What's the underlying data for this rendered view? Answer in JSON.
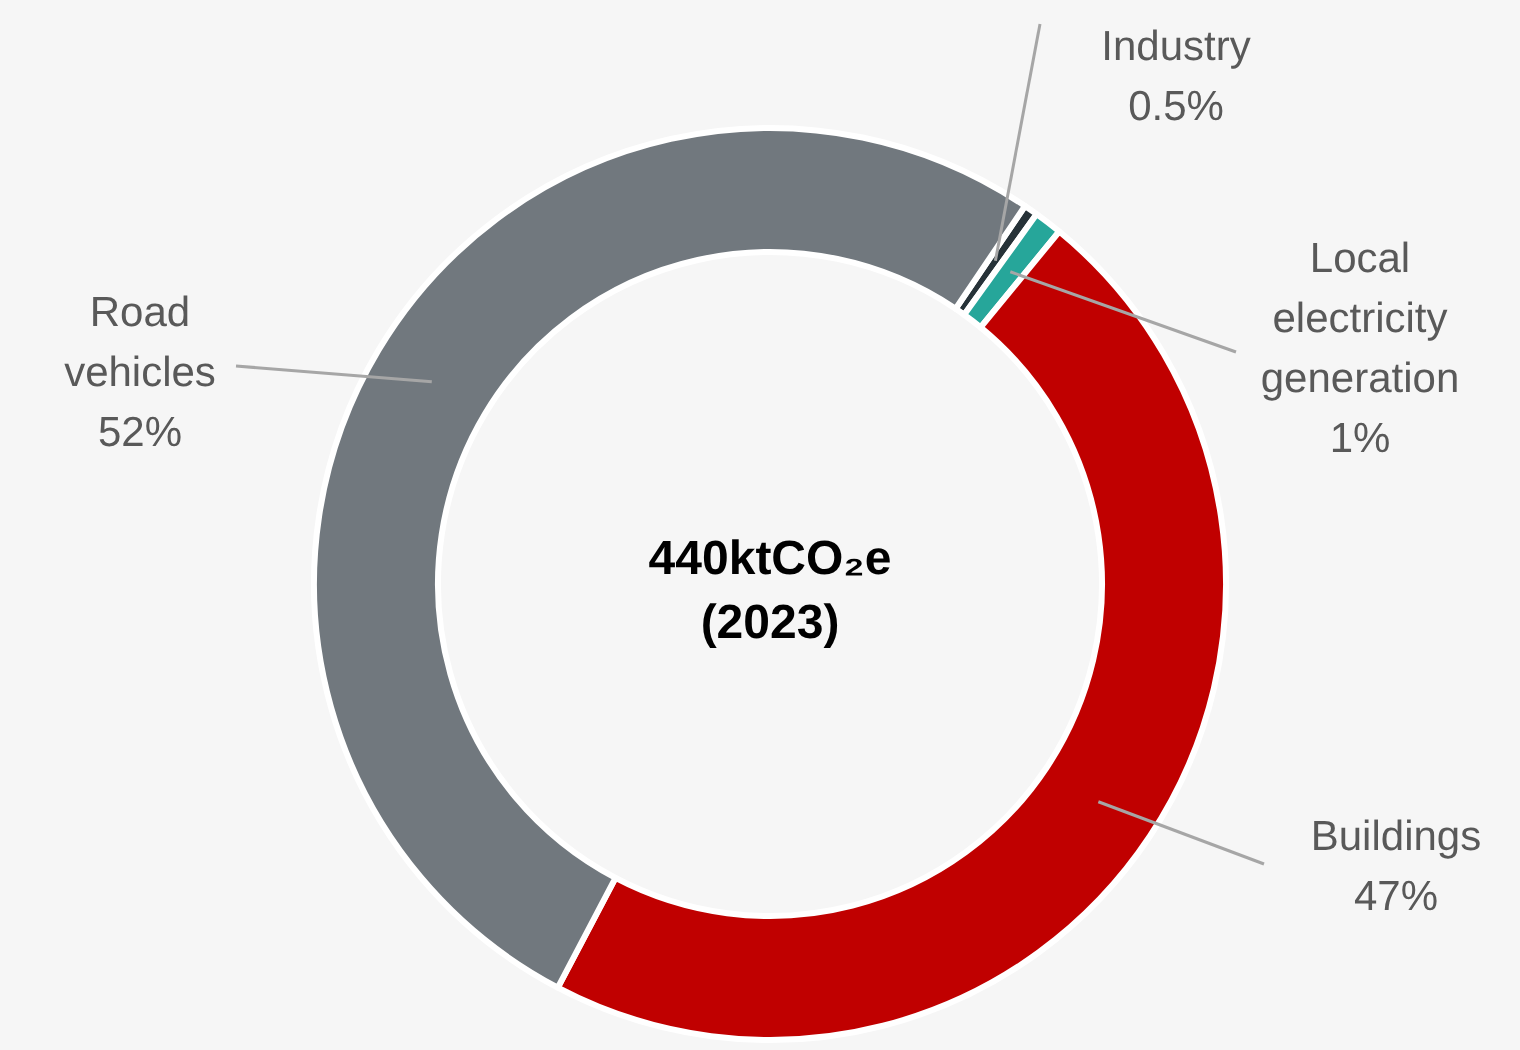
{
  "chart_data": {
    "type": "donut",
    "title": "440ktCO₂e (2023)",
    "categories": [
      "Industry",
      "Local electricity generation",
      "Buildings",
      "Road vehicles"
    ],
    "values": [
      0.5,
      1,
      47,
      52
    ],
    "value_labels": [
      "0.5%",
      "1%",
      "47%",
      "52%"
    ],
    "colors": [
      "#263238",
      "#26a69a",
      "#c00000",
      "#71787e"
    ]
  }
}
